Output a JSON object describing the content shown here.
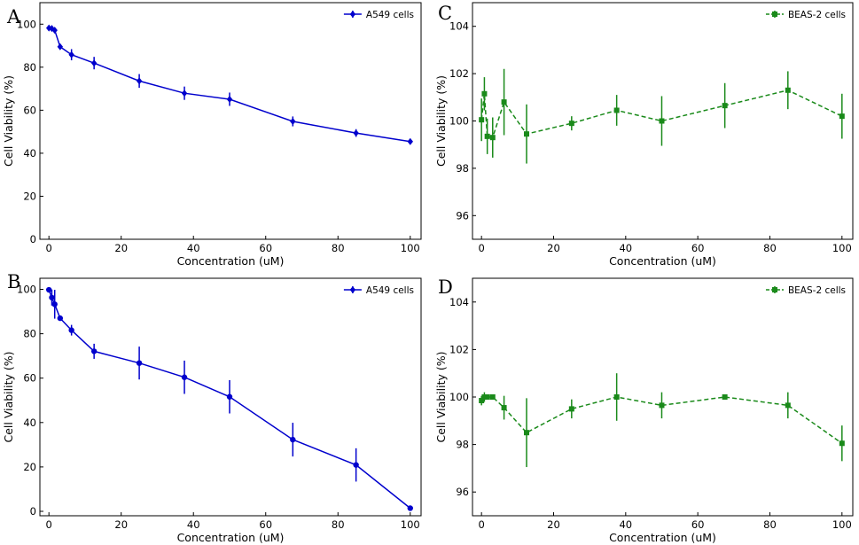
{
  "figure": {
    "panels": [
      {
        "letter": "A",
        "xlabel": "Concentration (uM)",
        "ylabel": "Cell Viability (%)",
        "legend": "A549 cells",
        "x_ticks": [
          "0",
          "20",
          "40",
          "60",
          "80",
          "100"
        ],
        "y_ticks": [
          "0",
          "20",
          "40",
          "60",
          "80",
          "100"
        ]
      },
      {
        "letter": "C",
        "xlabel": "Concentration (uM)",
        "ylabel": "Cell Viability (%)",
        "legend": "BEAS-2 cells",
        "x_ticks": [
          "0",
          "20",
          "40",
          "60",
          "80",
          "100"
        ],
        "y_ticks": [
          "96",
          "98",
          "100",
          "102",
          "104"
        ]
      },
      {
        "letter": "B",
        "xlabel": "Concentration (uM)",
        "ylabel": "Cell Viability (%)",
        "legend": "A549 cells",
        "x_ticks": [
          "0",
          "20",
          "40",
          "60",
          "80",
          "100"
        ],
        "y_ticks": [
          "0",
          "20",
          "40",
          "60",
          "80",
          "100"
        ]
      },
      {
        "letter": "D",
        "xlabel": "Concentration (uM)",
        "ylabel": "Cell Viability (%)",
        "legend": "BEAS-2 cells",
        "x_ticks": [
          "0",
          "20",
          "40",
          "60",
          "80",
          "100"
        ],
        "y_ticks": [
          "96",
          "98",
          "100",
          "102",
          "104"
        ]
      }
    ]
  },
  "chart_data": [
    {
      "panel": "A",
      "type": "line",
      "title": "",
      "xlabel": "Concentration (uM)",
      "ylabel": "Cell Viability (%)",
      "xlim": [
        -2.5,
        103
      ],
      "ylim": [
        0,
        110
      ],
      "xticks": [
        0,
        20,
        40,
        60,
        80,
        100
      ],
      "yticks": [
        0,
        20,
        40,
        60,
        80,
        100
      ],
      "grid": false,
      "legend_position": "top-right",
      "series": [
        {
          "name": "A549 cells",
          "color": "#0000cd",
          "marker": "diamond",
          "linestyle": "solid",
          "x": [
            0,
            0.8,
            1.6,
            3.1,
            6.25,
            12.5,
            25,
            37.5,
            50,
            67.5,
            85,
            100
          ],
          "y": [
            98.2,
            98.0,
            97.2,
            89.5,
            85.8,
            81.9,
            73.6,
            67.9,
            65.1,
            54.8,
            49.4,
            45.4
          ],
          "err": [
            0.6,
            0.6,
            0.9,
            0.7,
            2.6,
            2.9,
            3.2,
            3.1,
            3.1,
            2.3,
            1.8,
            0.9
          ]
        }
      ]
    },
    {
      "panel": "C",
      "type": "line",
      "title": "",
      "xlabel": "Concentration (uM)",
      "ylabel": "Cell Viability (%)",
      "xlim": [
        -2.5,
        103
      ],
      "ylim": [
        95,
        105
      ],
      "xticks": [
        0,
        20,
        40,
        60,
        80,
        100
      ],
      "yticks": [
        96,
        98,
        100,
        102,
        104
      ],
      "grid": false,
      "legend_position": "top-right",
      "series": [
        {
          "name": "BEAS-2 cells",
          "color": "#1a8a1a",
          "marker": "square",
          "linestyle": "dashed",
          "x": [
            0,
            0.8,
            1.6,
            3.1,
            6.25,
            12.5,
            25,
            37.5,
            50,
            67.5,
            85,
            100
          ],
          "y": [
            100.05,
            101.15,
            99.35,
            99.3,
            100.8,
            99.45,
            99.9,
            100.45,
            100.0,
            100.65,
            101.3,
            100.2
          ],
          "err": [
            0.9,
            0.7,
            0.75,
            0.85,
            1.4,
            1.25,
            0.3,
            0.65,
            1.05,
            0.95,
            0.8,
            0.95
          ]
        }
      ]
    },
    {
      "panel": "B",
      "type": "line",
      "title": "",
      "xlabel": "Concentration (uM)",
      "ylabel": "Cell Viability (%)",
      "xlim": [
        -2.5,
        103
      ],
      "ylim": [
        -2,
        105
      ],
      "xticks": [
        0,
        20,
        40,
        60,
        80,
        100
      ],
      "yticks": [
        0,
        20,
        40,
        60,
        80,
        100
      ],
      "grid": false,
      "legend_position": "top-right",
      "series": [
        {
          "name": "A549 cells",
          "color": "#0000cd",
          "marker": "circle",
          "linestyle": "solid",
          "x": [
            0,
            0.8,
            1.6,
            3.1,
            6.25,
            12.5,
            25,
            37.5,
            50,
            67.5,
            85,
            100
          ],
          "y": [
            99.8,
            96.3,
            93.3,
            87.0,
            81.6,
            72.1,
            66.8,
            60.4,
            51.6,
            32.3,
            20.9,
            1.4
          ],
          "err": [
            0.6,
            3.6,
            6.5,
            0.8,
            2.4,
            3.4,
            7.4,
            7.5,
            7.5,
            7.6,
            7.5,
            0.8
          ]
        }
      ]
    },
    {
      "panel": "D",
      "type": "line",
      "title": "",
      "xlabel": "Concentration (uM)",
      "ylabel": "Cell Viability (%)",
      "xlim": [
        -2.5,
        103
      ],
      "ylim": [
        95,
        105
      ],
      "xticks": [
        0,
        20,
        40,
        60,
        80,
        100
      ],
      "yticks": [
        96,
        98,
        100,
        102,
        104
      ],
      "grid": false,
      "legend_position": "top-right",
      "series": [
        {
          "name": "BEAS-2 cells",
          "color": "#1a8a1a",
          "marker": "square",
          "linestyle": "dashed",
          "x": [
            0,
            0.8,
            1.6,
            3.1,
            6.25,
            12.5,
            25,
            37.5,
            50,
            67.5,
            85,
            100
          ],
          "y": [
            99.85,
            100.0,
            100.0,
            100.0,
            99.55,
            98.5,
            99.5,
            100.0,
            99.65,
            100.0,
            99.65,
            98.05
          ],
          "err": [
            0.2,
            0.2,
            0.1,
            0.1,
            0.5,
            1.45,
            0.4,
            1.0,
            0.55,
            0.1,
            0.55,
            0.75
          ]
        }
      ]
    }
  ]
}
